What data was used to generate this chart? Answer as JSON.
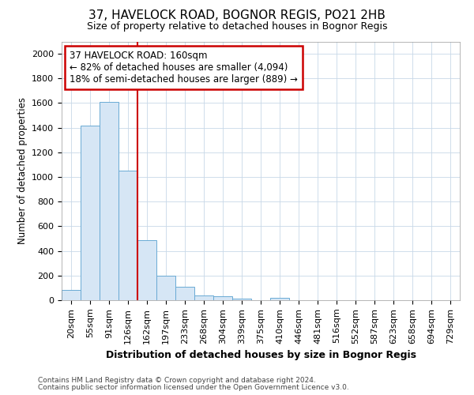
{
  "title1": "37, HAVELOCK ROAD, BOGNOR REGIS, PO21 2HB",
  "title2": "Size of property relative to detached houses in Bognor Regis",
  "xlabel": "Distribution of detached houses by size in Bognor Regis",
  "ylabel": "Number of detached properties",
  "bar_values": [
    85,
    1415,
    1610,
    1050,
    490,
    200,
    110,
    40,
    30,
    15,
    0,
    20,
    0,
    0,
    0,
    0,
    0,
    0,
    0,
    0,
    0
  ],
  "categories": [
    "20sqm",
    "55sqm",
    "91sqm",
    "126sqm",
    "162sqm",
    "197sqm",
    "233sqm",
    "268sqm",
    "304sqm",
    "339sqm",
    "375sqm",
    "410sqm",
    "446sqm",
    "481sqm",
    "516sqm",
    "552sqm",
    "587sqm",
    "623sqm",
    "658sqm",
    "694sqm",
    "729sqm"
  ],
  "bar_color": "#d6e6f5",
  "bar_edge_color": "#6aaad4",
  "red_line_color": "#cc0000",
  "annotation_line1": "37 HAVELOCK ROAD: 160sqm",
  "annotation_line2": "← 82% of detached houses are smaller (4,094)",
  "annotation_line3": "18% of semi-detached houses are larger (889) →",
  "annotation_box_edge_color": "#cc0000",
  "ylim": [
    0,
    2100
  ],
  "yticks": [
    0,
    200,
    400,
    600,
    800,
    1000,
    1200,
    1400,
    1600,
    1800,
    2000
  ],
  "bg_color": "#ffffff",
  "grid_color": "#c8d8e8",
  "footnote1": "Contains HM Land Registry data © Crown copyright and database right 2024.",
  "footnote2": "Contains public sector information licensed under the Open Government Licence v3.0.",
  "title1_fontsize": 11,
  "title2_fontsize": 9,
  "xlabel_fontsize": 9,
  "ylabel_fontsize": 8.5,
  "tick_fontsize": 8,
  "annot_fontsize": 8.5,
  "footnote_fontsize": 6.5
}
